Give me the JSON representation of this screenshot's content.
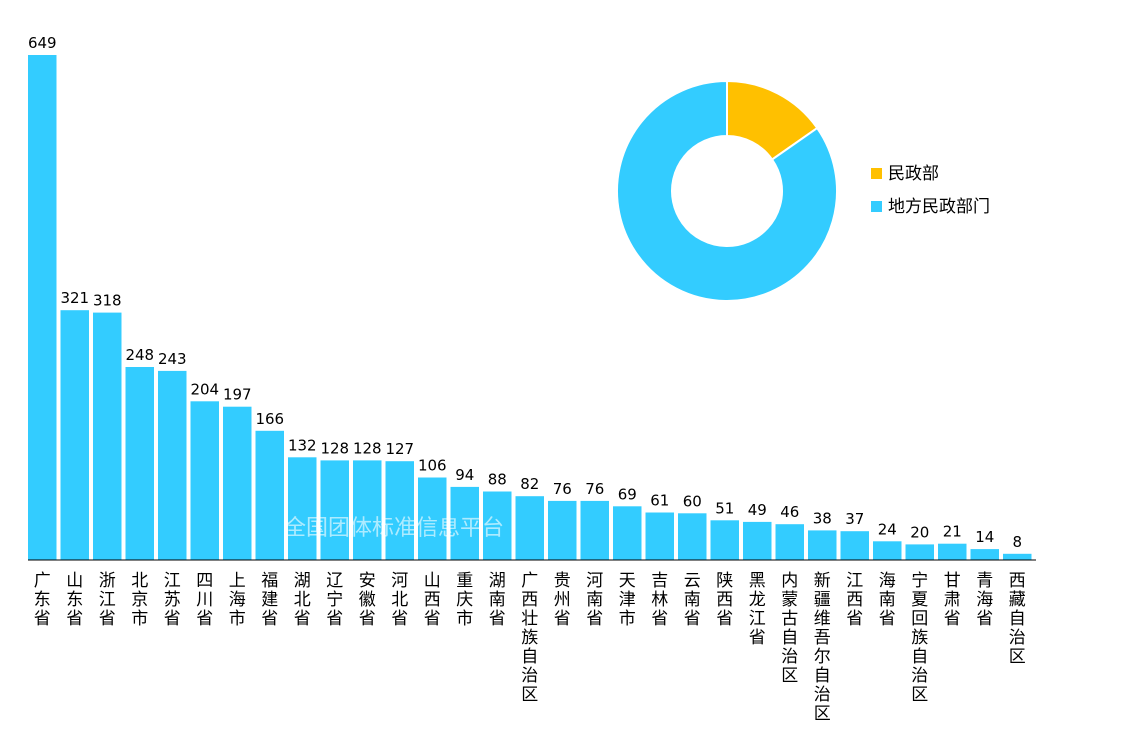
{
  "chart_data": [
    {
      "type": "bar",
      "title": "",
      "xlabel": "",
      "ylabel": "",
      "ylim": [
        0,
        649
      ],
      "grid": false,
      "color": "#33ccff",
      "categories": [
        "广东省",
        "山东省",
        "浙江省",
        "北京市",
        "江苏省",
        "四川省",
        "上海市",
        "福建省",
        "湖北省",
        "辽宁省",
        "安徽省",
        "河北省",
        "山西省",
        "重庆市",
        "湖南省",
        "广西壮族自治区",
        "贵州省",
        "河南省",
        "天津市",
        "吉林省",
        "云南省",
        "陕西省",
        "黑龙江省",
        "内蒙古自治区",
        "新疆维吾尔自治区",
        "江西省",
        "海南省",
        "宁夏回族自治区",
        "甘肃省",
        "青海省",
        "西藏自治区"
      ],
      "values": [
        649,
        321,
        318,
        248,
        243,
        204,
        197,
        166,
        132,
        128,
        128,
        127,
        106,
        94,
        88,
        82,
        76,
        76,
        69,
        61,
        60,
        51,
        49,
        46,
        38,
        37,
        24,
        20,
        21,
        14,
        8
      ],
      "watermark": "全国团体标准信息平台"
    },
    {
      "type": "pie",
      "style": "donut",
      "legend_position": "right",
      "labels": [
        "民政部",
        "地方民政部门"
      ],
      "colors": [
        "#ffc000",
        "#33ccff"
      ],
      "shares": [
        0.153,
        0.847
      ]
    }
  ]
}
